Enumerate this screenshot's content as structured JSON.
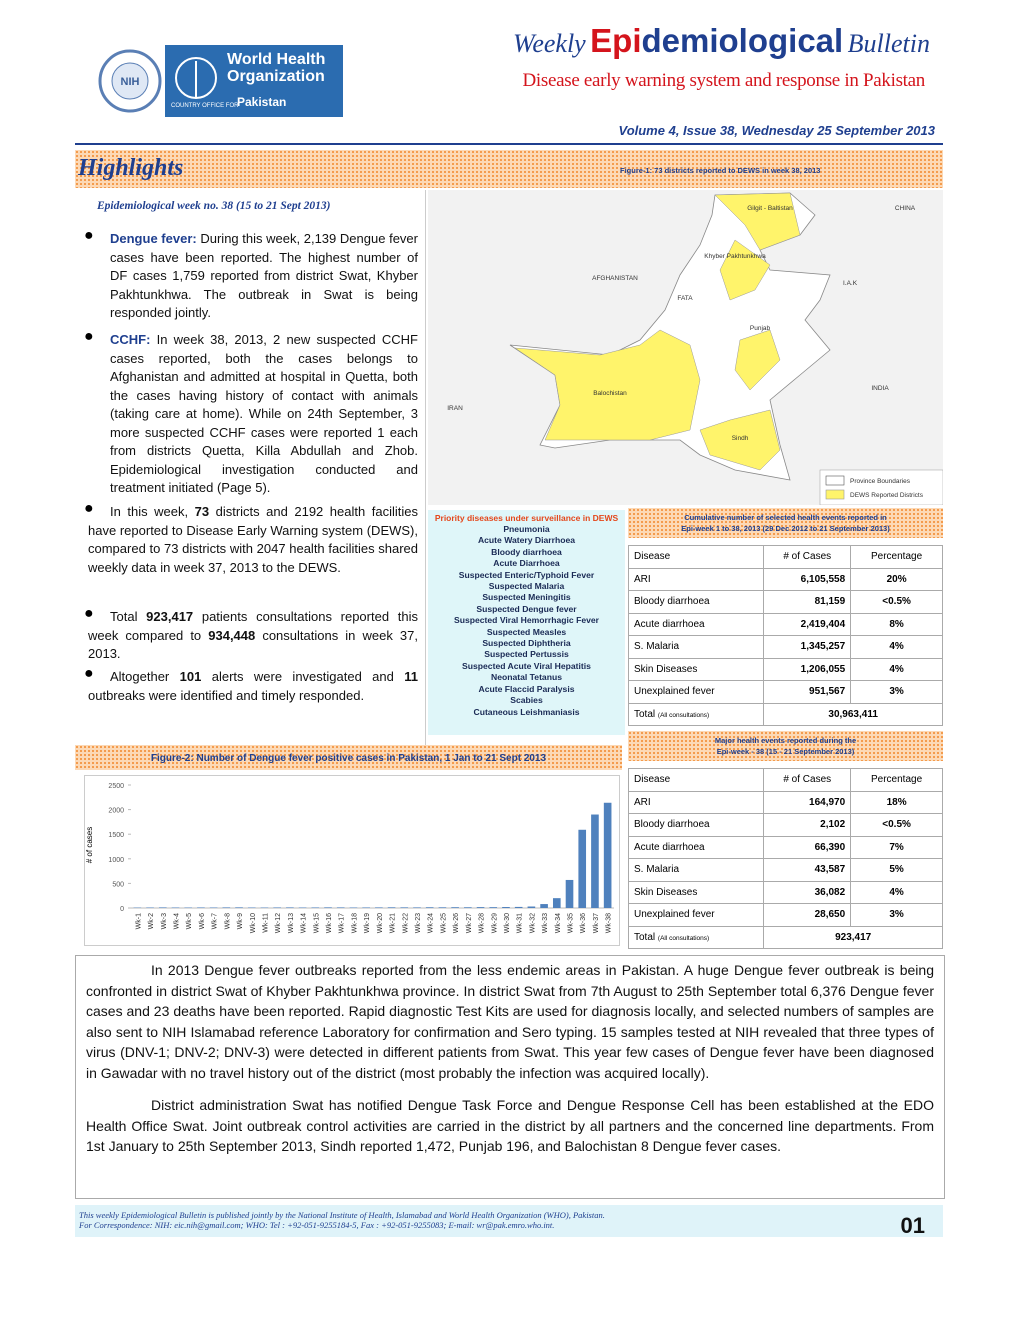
{
  "header": {
    "who_name": "World Health Organization",
    "who_office": "COUNTRY OFFICE FOR",
    "who_country": "Pakistan",
    "title_weekly": "Weekly",
    "title_epi": "Epi",
    "title_demiological": "demiological",
    "title_bulletin": "Bulletin",
    "subtitle": "Disease early warning system and response in Pakistan",
    "issue": "Volume 4, Issue 38, Wednesday 25 September 2013"
  },
  "highlights": {
    "title": "Highlights",
    "week": "Epidemiological week no. 38 (15 to 21 Sept 2013)",
    "bullets": [
      [
        {
          "text": "Dengue fever:",
          "bold": true
        },
        {
          "text": " During this week, 2,139 Dengue fever cases have been reported. The highest number of DF cases 1,759 reported from district Swat, Khyber Pakhtunkhwa. The outbreak in Swat is being responded jointly.",
          "bold": false
        }
      ],
      [
        {
          "text": "CCHF:",
          "bold": true
        },
        {
          "text": " In week 38, 2013, 2 new suspected CCHF cases reported, both the cases belongs to Afghanistan and admitted at hospital in Quetta, both the cases having history of contact with animals (taking care at home). While on 24th September, 3 more suspected CCHF cases were reported 1 each from districts Quetta, Killa Abdullah and Zhob.  Epidemiological investigation conducted and treatment initiated (Page 5).",
          "bold": false
        }
      ],
      [
        {
          "text": "In this week, ",
          "bold": false
        },
        {
          "text": "73",
          "bold": true
        },
        {
          "text": " districts and 2192 health facilities have reported to Disease Early Warning system (DEWS), compared to 73 districts with 2047 health facilities shared weekly data in week 37, 2013 to the DEWS.",
          "bold": false
        }
      ],
      [
        {
          "text": "Total ",
          "bold": false
        },
        {
          "text": "923,417",
          "bold": true
        },
        {
          "text": " patients consultations reported this week compared to ",
          "bold": false
        },
        {
          "text": "934,448",
          "bold": true
        },
        {
          "text": " consultations in week 37, 2013.",
          "bold": false
        }
      ],
      [
        {
          "text": "Altogether ",
          "bold": false
        },
        {
          "text": "101",
          "bold": true
        },
        {
          "text": " alerts were investigated and ",
          "bold": false
        },
        {
          "text": "11",
          "bold": true
        },
        {
          "text": " outbreaks were identified and timely responded.",
          "bold": false
        }
      ]
    ]
  },
  "map": {
    "caption": "Figure-1: 73 districts reported to DEWS in week 38, 2013",
    "labels": [
      "Gilgit - Baltistan",
      "Khyber Pakhtunkhwa",
      "FATA",
      "Punjab",
      "Balochistan",
      "Sindh",
      "AFGHANISTAN",
      "I.A.K",
      "CHINA",
      "INDIA",
      "IRAN"
    ],
    "legend": [
      "Province Boundaries",
      "DEWS Reported Districts"
    ]
  },
  "priority": {
    "title": "Priority diseases under surveillance in DEWS",
    "items": [
      "Pneumonia",
      "Acute Watery Diarrhoea",
      "Bloody diarrhoea",
      "Acute Diarrhoea",
      "Suspected Enteric/Typhoid Fever",
      "Suspected Malaria",
      "Suspected Meningitis",
      "Suspected Dengue fever",
      "Suspected Viral Hemorrhagic Fever",
      "Suspected Measles",
      "Suspected Diphtheria",
      "Suspected Pertussis",
      "Suspected Acute Viral Hepatitis",
      "Neonatal Tetanus",
      "Acute Flaccid Paralysis",
      "Scabies",
      "Cutaneous Leishmaniasis"
    ]
  },
  "table_cumulative": {
    "title": "Cumulative number of selected health events reported in",
    "subtitle": "Epi-week 1 to 38, 2013 (29 Dec 2012 to 21 September 2013)",
    "headers": [
      "Disease",
      "# of Cases",
      "Percentage"
    ],
    "rows": [
      [
        "ARI",
        "6,105,558",
        "20%"
      ],
      [
        "Bloody diarrhoea",
        "81,159",
        "<0.5%"
      ],
      [
        "Acute diarrhoea",
        "2,419,404",
        "8%"
      ],
      [
        "S. Malaria",
        "1,345,257",
        "4%"
      ],
      [
        "Skin Diseases",
        "1,206,055",
        "4%"
      ],
      [
        "Unexplained fever",
        "951,567",
        "3%"
      ]
    ],
    "total_label": "Total",
    "total_note": "(All consultations)",
    "total_value": "30,963,411"
  },
  "table_week": {
    "title": "Major health events reported during the",
    "subtitle": "Epi-week - 38 (15 - 21 September 2013)",
    "headers": [
      "Disease",
      "# of Cases",
      "Percentage"
    ],
    "rows": [
      [
        "ARI",
        "164,970",
        "18%"
      ],
      [
        "Bloody diarrhoea",
        "2,102",
        "<0.5%"
      ],
      [
        "Acute diarrhoea",
        "66,390",
        "7%"
      ],
      [
        "S. Malaria",
        "43,587",
        "5%"
      ],
      [
        "Skin Diseases",
        "36,082",
        "4%"
      ],
      [
        "Unexplained fever",
        "28,650",
        "3%"
      ]
    ],
    "total_label": "Total",
    "total_note": "(All consultations)",
    "total_value": "923,417"
  },
  "chart_data": {
    "type": "bar",
    "title": "Figure-2: Number of Dengue fever positive cases in Pakistan, 1 Jan to 21 Sept 2013",
    "y_label": "# of cases",
    "categories": [
      "Wk-1",
      "Wk-2",
      "Wk-3",
      "Wk-4",
      "Wk-5",
      "Wk-6",
      "Wk-7",
      "Wk-8",
      "Wk-9",
      "Wk-10",
      "Wk-11",
      "Wk-12",
      "Wk-13",
      "Wk-14",
      "Wk-15",
      "Wk-16",
      "Wk-17",
      "Wk-18",
      "Wk-19",
      "Wk-20",
      "Wk-21",
      "Wk-22",
      "Wk-23",
      "Wk-24",
      "Wk-25",
      "Wk-26",
      "Wk-27",
      "Wk-28",
      "Wk-29",
      "Wk-30",
      "Wk-31",
      "Wk-32",
      "Wk-33",
      "Wk-34",
      "Wk-35",
      "Wk-36",
      "Wk-37",
      "Wk-38"
    ],
    "values": [
      8,
      10,
      12,
      10,
      9,
      11,
      10,
      12,
      13,
      10,
      9,
      11,
      12,
      10,
      11,
      13,
      12,
      10,
      11,
      12,
      14,
      13,
      12,
      15,
      14,
      16,
      15,
      18,
      17,
      20,
      22,
      30,
      80,
      200,
      570,
      1590,
      1900,
      2139
    ],
    "color": "#4f81bd",
    "ylim": [
      0,
      2500
    ],
    "yticks": [
      0,
      500,
      1000,
      1500,
      2000,
      2500
    ]
  },
  "body": {
    "paragraphs": [
      "In 2013 Dengue fever outbreaks reported from the less endemic areas in Pakistan. A huge Dengue fever outbreak is being confronted in district Swat of Khyber Pakhtunkhwa province. In district Swat from 7th August to 25th September total 6,376 Dengue fever cases and 23 deaths have been reported. Rapid diagnostic Test Kits are used for diagnosis locally, and selected numbers of samples are also sent to NIH Islamabad reference Laboratory for confirmation and Sero typing. 15 samples tested at NIH revealed that three types of virus (DNV-1; DNV-2; DNV-3) were detected in different patients from Swat. This year few cases of Dengue fever have been diagnosed in Gawadar with no travel history out of the district (most probably the infection was acquired locally).",
      "District administration Swat has notified Dengue Task Force and Dengue Response Cell has been established at the EDO Health Office Swat. Joint outbreak control activities are carried in the district by all partners and the concerned line departments. From 1st January to 25th September 2013, Sindh reported 1,472, Punjab 196, and Balochistan 8 Dengue fever cases."
    ]
  },
  "footer": {
    "lines": [
      "This weekly Epidemiological Bulletin is published jointly by the National Institute of Health, Islamabad and  World Health Organization (WHO), Pakistan.",
      "For Correspondence: NIH: eic.nih@gmail.com; WHO: Tel : +92-051-9255184-5, Fax : +92-051-9255083; E-mail: wr@pak.emro.who.int."
    ],
    "page": "01"
  }
}
